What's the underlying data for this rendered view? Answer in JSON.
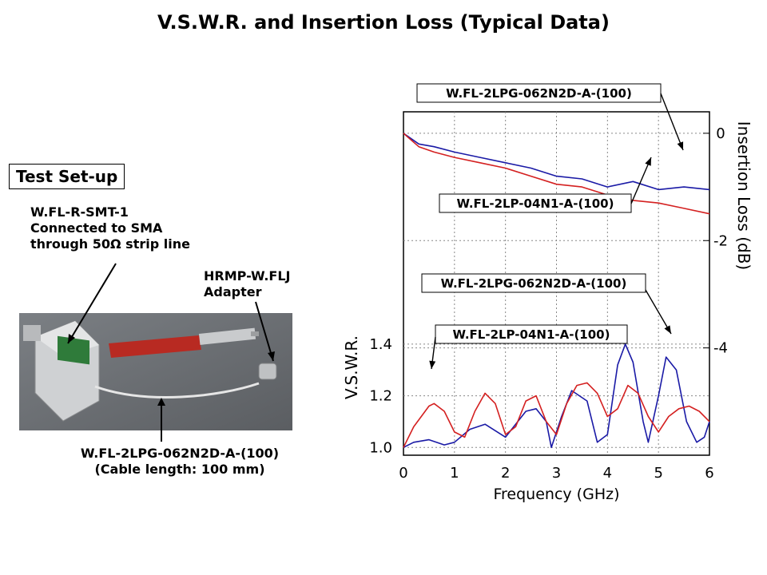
{
  "slide": {
    "title": "V.S.W.R. and Insertion Loss (Typical Data)",
    "setup_label": "Test Set-up",
    "connector_note": "W.FL-R-SMT-1\nConnected to SMA\nthrough 50Ω strip line",
    "adapter_note": "HRMP-W.FLJ\nAdapter",
    "cable_note": "W.FL-2LPG-062N2D-A-(100)\n(Cable length: 100 mm)"
  },
  "chart_data": {
    "type": "line",
    "xlabel": "Frequency (GHz)",
    "xlim": [
      0,
      6
    ],
    "xticks": [
      "0",
      "1",
      "2",
      "3",
      "4",
      "5",
      "6"
    ],
    "grid": true,
    "annotations": [
      "W.FL-2LPG-062N2D-A-(100)",
      "W.FL-2LP-04N1-A-(100)",
      "W.FL-2LPG-062N2D-A-(100)",
      "W.FL-2LP-04N1-A-(100)"
    ],
    "colors": {
      "W.FL-2LPG-062N2D-A-(100)": "#1a1aa6",
      "W.FL-2LP-04N1-A-(100)": "#d42020"
    },
    "insertion_loss": {
      "ylabel": "Insertion Loss (dB)",
      "ylim": [
        -6,
        0.4
      ],
      "yticks": [
        "0",
        "-2",
        "-4"
      ],
      "series": [
        {
          "name": "W.FL-2LPG-062N2D-A-(100)",
          "color": "#1a1aa6",
          "x": [
            0,
            0.3,
            0.6,
            1.0,
            1.5,
            2.0,
            2.5,
            3.0,
            3.5,
            4.0,
            4.5,
            5.0,
            5.5,
            6.0
          ],
          "y": [
            0,
            -0.2,
            -0.25,
            -0.35,
            -0.45,
            -0.55,
            -0.65,
            -0.8,
            -0.85,
            -1.0,
            -0.9,
            -1.05,
            -1.0,
            -1.05
          ]
        },
        {
          "name": "W.FL-2LP-04N1-A-(100)",
          "color": "#d42020",
          "x": [
            0,
            0.3,
            0.6,
            1.0,
            1.5,
            2.0,
            2.5,
            3.0,
            3.5,
            4.0,
            4.5,
            5.0,
            5.5,
            6.0
          ],
          "y": [
            0,
            -0.25,
            -0.35,
            -0.45,
            -0.55,
            -0.65,
            -0.8,
            -0.95,
            -1.0,
            -1.15,
            -1.25,
            -1.3,
            -1.4,
            -1.5
          ]
        }
      ]
    },
    "vswr": {
      "ylabel": "V.S.W.R.",
      "ylim": [
        0.97,
        1.65
      ],
      "yticks": [
        "1.0",
        "1.2",
        "1.4"
      ],
      "series": [
        {
          "name": "W.FL-2LPG-062N2D-A-(100)",
          "color": "#1a1aa6",
          "x": [
            0,
            0.2,
            0.5,
            0.8,
            1.0,
            1.3,
            1.6,
            2.0,
            2.4,
            2.6,
            2.8,
            2.9,
            3.1,
            3.3,
            3.6,
            3.8,
            4.0,
            4.2,
            4.35,
            4.5,
            4.7,
            4.8,
            5.0,
            5.15,
            5.35,
            5.55,
            5.75,
            5.9,
            6.0
          ],
          "y": [
            1.0,
            1.02,
            1.03,
            1.01,
            1.02,
            1.07,
            1.09,
            1.04,
            1.14,
            1.15,
            1.1,
            1.0,
            1.12,
            1.22,
            1.18,
            1.02,
            1.05,
            1.32,
            1.4,
            1.33,
            1.1,
            1.02,
            1.2,
            1.35,
            1.3,
            1.1,
            1.02,
            1.04,
            1.1
          ]
        },
        {
          "name": "W.FL-2LP-04N1-A-(100)",
          "color": "#d42020",
          "x": [
            0,
            0.2,
            0.5,
            0.6,
            0.8,
            1.0,
            1.2,
            1.4,
            1.6,
            1.8,
            2.0,
            2.2,
            2.4,
            2.6,
            2.8,
            3.0,
            3.2,
            3.4,
            3.6,
            3.8,
            4.0,
            4.2,
            4.4,
            4.6,
            4.8,
            5.0,
            5.2,
            5.4,
            5.6,
            5.8,
            6.0
          ],
          "y": [
            1.0,
            1.08,
            1.16,
            1.17,
            1.14,
            1.06,
            1.04,
            1.14,
            1.21,
            1.17,
            1.05,
            1.08,
            1.18,
            1.2,
            1.1,
            1.05,
            1.17,
            1.24,
            1.25,
            1.21,
            1.12,
            1.15,
            1.24,
            1.21,
            1.12,
            1.06,
            1.12,
            1.15,
            1.16,
            1.14,
            1.1
          ]
        }
      ]
    }
  }
}
